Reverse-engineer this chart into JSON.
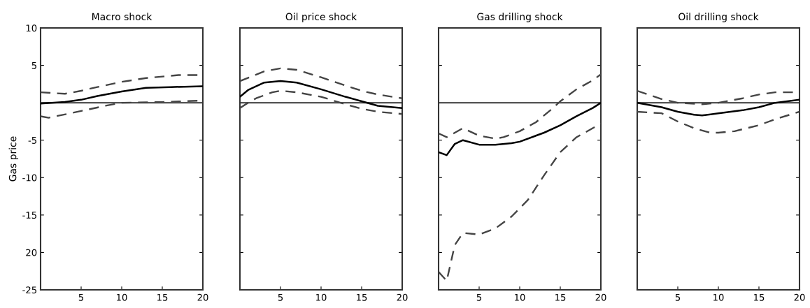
{
  "chart_data": [
    {
      "type": "line",
      "title": "Macro shock",
      "ylabel": "Gas price",
      "xlim": [
        0,
        20
      ],
      "xticks": [
        5,
        10,
        15,
        20
      ],
      "ylim": [
        -25,
        10
      ],
      "yticks": [
        10,
        5,
        -5,
        -10,
        -15,
        {
          "value": -20,
          "label": "20"
        },
        -25
      ],
      "grid": false,
      "ref_lines": [
        {
          "axis": "y",
          "value": 0,
          "color": "#555555"
        }
      ],
      "series": [
        {
          "color": "#000000",
          "line_style": "solid",
          "x": [
            0,
            3,
            5,
            7,
            10,
            13,
            16,
            20
          ],
          "values": [
            -0.1,
            0.1,
            0.4,
            0.9,
            1.5,
            2.0,
            2.1,
            2.2
          ]
        },
        {
          "color": "#444444",
          "line_style": "dashed",
          "x": [
            0,
            3,
            5,
            7,
            10,
            13,
            17,
            20
          ],
          "values": [
            1.4,
            1.2,
            1.6,
            2.1,
            2.8,
            3.3,
            3.7,
            3.7
          ]
        },
        {
          "color": "#444444",
          "line_style": "dashed",
          "x": [
            0,
            1,
            5,
            8,
            10,
            15,
            20
          ],
          "values": [
            -1.8,
            -2.0,
            -1.1,
            -0.4,
            0,
            0.1,
            0.3
          ]
        }
      ]
    },
    {
      "type": "line",
      "title": "Oil price shock",
      "xlim": [
        0,
        20
      ],
      "xticks": [
        5,
        10,
        15,
        20
      ],
      "ylim": [
        -25,
        10
      ],
      "yticks": [
        {
          "value": 10,
          "label": null
        },
        {
          "value": 5,
          "label": null
        },
        {
          "value": -5,
          "label": null
        },
        {
          "value": -10,
          "label": null
        },
        {
          "value": -15,
          "label": null
        },
        {
          "value": -20,
          "label": null
        },
        {
          "value": -25,
          "label": null
        }
      ],
      "tick_labels": "x",
      "grid": false,
      "ref_lines": [
        {
          "axis": "y",
          "value": 0,
          "color": "#555555"
        }
      ],
      "series": [
        {
          "color": "#000000",
          "line_style": "solid",
          "x": [
            0,
            1,
            3,
            5,
            7,
            10,
            13,
            15,
            17,
            20
          ],
          "values": [
            0.8,
            1.7,
            2.7,
            2.9,
            2.7,
            1.8,
            0.8,
            0.2,
            -0.4,
            -0.7
          ]
        },
        {
          "color": "#444444",
          "line_style": "dashed",
          "x": [
            0,
            3,
            5,
            7,
            10,
            13,
            15,
            17,
            20
          ],
          "values": [
            2.9,
            4.2,
            4.6,
            4.4,
            3.4,
            2.3,
            1.6,
            1.1,
            0.6
          ]
        },
        {
          "color": "#444444",
          "line_style": "dashed",
          "x": [
            0,
            1,
            2,
            4,
            5,
            7,
            10,
            13,
            15,
            17,
            20
          ],
          "values": [
            -0.7,
            0,
            0.6,
            1.4,
            1.6,
            1.4,
            0.8,
            -0.2,
            -0.8,
            -1.2,
            -1.5
          ]
        }
      ]
    },
    {
      "type": "line",
      "title": "Gas drilling shock",
      "xlim": [
        0,
        20
      ],
      "xticks": [
        5,
        10,
        15,
        20
      ],
      "ylim": [
        -25,
        10
      ],
      "yticks": [
        {
          "value": 10,
          "label": null
        },
        {
          "value": 5,
          "label": null
        },
        {
          "value": -5,
          "label": null
        },
        {
          "value": -10,
          "label": null
        },
        {
          "value": -15,
          "label": null
        },
        {
          "value": -20,
          "label": null
        },
        {
          "value": -25,
          "label": null
        }
      ],
      "tick_labels": "x",
      "grid": false,
      "ref_lines": [
        {
          "axis": "y",
          "value": 0,
          "color": "#555555"
        }
      ],
      "series": [
        {
          "color": "#000000",
          "line_style": "solid",
          "x": [
            0,
            1,
            2,
            3,
            5,
            7,
            9,
            10,
            12,
            13,
            15,
            17,
            19,
            20
          ],
          "values": [
            -6.6,
            -7.0,
            -5.5,
            -5.0,
            -5.6,
            -5.6,
            -5.4,
            -5.2,
            -4.4,
            -4.0,
            -3.0,
            -1.8,
            -0.7,
            0
          ]
        },
        {
          "color": "#444444",
          "line_style": "dashed",
          "x": [
            0,
            1,
            3,
            5,
            7,
            8,
            10,
            12,
            14,
            15,
            17,
            19,
            20
          ],
          "values": [
            -4.1,
            -4.6,
            -3.4,
            -4.4,
            -4.8,
            -4.6,
            -3.8,
            -2.6,
            -0.8,
            0.2,
            1.8,
            3.0,
            3.8
          ]
        },
        {
          "color": "#444444",
          "line_style": "dashed",
          "x": [
            0,
            1,
            2,
            3,
            5,
            7,
            9,
            11,
            13,
            15,
            17,
            19,
            20
          ],
          "values": [
            -22.6,
            -23.8,
            -19.0,
            -17.4,
            -17.6,
            -16.8,
            -15.2,
            -13.0,
            -9.7,
            -6.6,
            -4.6,
            -3.4,
            -2.8
          ]
        }
      ]
    },
    {
      "type": "line",
      "title": "Oil drilling shock",
      "xlim": [
        0,
        20
      ],
      "xticks": [
        5,
        10,
        15,
        20
      ],
      "ylim": [
        -25,
        10
      ],
      "yticks": [
        {
          "value": 10,
          "label": null
        },
        {
          "value": 5,
          "label": null
        },
        {
          "value": -5,
          "label": null
        },
        {
          "value": -10,
          "label": null
        },
        {
          "value": -15,
          "label": null
        },
        {
          "value": -20,
          "label": null
        },
        {
          "value": -25,
          "label": null
        }
      ],
      "tick_labels": "x",
      "grid": false,
      "ref_lines": [
        {
          "axis": "y",
          "value": 0,
          "color": "#555555"
        }
      ],
      "series": [
        {
          "color": "#000000",
          "line_style": "solid",
          "x": [
            0,
            3,
            5,
            7,
            8,
            10,
            13,
            15,
            17,
            20
          ],
          "values": [
            0,
            -0.6,
            -1.2,
            -1.6,
            -1.7,
            -1.4,
            -1.0,
            -0.6,
            0,
            0.4
          ]
        },
        {
          "color": "#444444",
          "line_style": "dashed",
          "x": [
            0,
            3,
            5,
            8,
            10,
            13,
            15,
            17,
            20
          ],
          "values": [
            1.6,
            0.5,
            0,
            -0.2,
            0,
            0.6,
            1.1,
            1.4,
            1.4
          ]
        },
        {
          "color": "#444444",
          "line_style": "dashed",
          "x": [
            0,
            3,
            5,
            7,
            9,
            10,
            12,
            15,
            17,
            20
          ],
          "values": [
            -1.2,
            -1.4,
            -2.5,
            -3.4,
            -4.0,
            -4.0,
            -3.8,
            -3.0,
            -2.2,
            -1.2
          ]
        }
      ]
    }
  ]
}
